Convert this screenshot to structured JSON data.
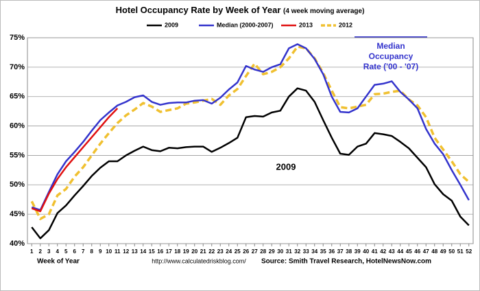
{
  "chart_data": {
    "type": "line",
    "title": "Hotel Occupancy Rate by  Week of Year",
    "subtitle": "(4 week moving average)",
    "x_label": "Week of Year",
    "footer": [
      "http://www.calculatedriskblog.com/",
      "Source: Smith Travel Research, HotelNewsNow.com"
    ],
    "annotations": [
      {
        "lines": [
          "Median",
          "Occupancy",
          "Rate ('00 - '07)"
        ],
        "color": "#3333cc"
      },
      {
        "lines": [
          "2009"
        ],
        "color": "#000000"
      }
    ],
    "x": [
      1,
      2,
      3,
      4,
      5,
      6,
      7,
      8,
      9,
      10,
      11,
      12,
      13,
      14,
      15,
      16,
      17,
      18,
      19,
      20,
      21,
      22,
      23,
      24,
      25,
      26,
      27,
      28,
      29,
      30,
      31,
      32,
      33,
      34,
      35,
      36,
      37,
      38,
      39,
      40,
      41,
      42,
      43,
      44,
      45,
      46,
      47,
      48,
      49,
      50,
      51,
      52
    ],
    "xlim": [
      0.5,
      52.5
    ],
    "xticks": [
      1,
      2,
      3,
      4,
      5,
      6,
      7,
      8,
      9,
      10,
      11,
      12,
      13,
      14,
      15,
      16,
      17,
      18,
      19,
      20,
      21,
      22,
      23,
      24,
      25,
      26,
      27,
      28,
      29,
      30,
      31,
      32,
      33,
      34,
      35,
      36,
      37,
      38,
      39,
      40,
      41,
      42,
      43,
      44,
      45,
      46,
      47,
      48,
      49,
      50,
      51,
      52
    ],
    "ylim": [
      40,
      75
    ],
    "yticks": [
      {
        "value": 40,
        "label": "40%"
      },
      {
        "value": 45,
        "label": "45%"
      },
      {
        "value": 50,
        "label": "50%"
      },
      {
        "value": 55,
        "label": "55%"
      },
      {
        "value": 60,
        "label": "60%"
      },
      {
        "value": 65,
        "label": "65%"
      },
      {
        "value": 70,
        "label": "70%"
      },
      {
        "value": 75,
        "label": "75%"
      }
    ],
    "grid": true,
    "legend": "top",
    "series": [
      {
        "name": "2009",
        "color": "#000000",
        "line_style": "solid",
        "values": [
          42.8,
          40.9,
          42.3,
          45.2,
          46.5,
          48.2,
          49.8,
          51.5,
          52.9,
          54.0,
          54.0,
          55.0,
          55.8,
          56.5,
          55.9,
          55.7,
          56.3,
          56.2,
          56.4,
          56.5,
          56.5,
          55.6,
          56.3,
          57.1,
          58.0,
          61.5,
          61.7,
          61.6,
          62.3,
          62.6,
          65.0,
          66.4,
          66.0,
          64.1,
          61.0,
          58.0,
          55.3,
          55.1,
          56.5,
          57.0,
          58.8,
          58.6,
          58.3,
          57.3,
          56.2,
          54.6,
          53.0,
          50.1,
          48.4,
          47.3,
          44.6,
          43.1
        ]
      },
      {
        "name": "Median (2000-2007)",
        "color": "#3333cc",
        "line_style": "solid",
        "values": [
          46.2,
          45.7,
          48.8,
          51.8,
          54.0,
          55.6,
          57.3,
          59.2,
          61.0,
          62.3,
          63.5,
          64.1,
          64.9,
          65.2,
          64.1,
          63.6,
          63.9,
          64.0,
          64.0,
          64.3,
          64.4,
          63.8,
          64.8,
          66.2,
          67.4,
          70.2,
          69.6,
          69.2,
          70.0,
          70.5,
          73.2,
          73.9,
          73.2,
          71.4,
          68.8,
          65.0,
          62.4,
          62.3,
          63.0,
          65.0,
          67.0,
          67.2,
          67.6,
          65.8,
          64.5,
          63.0,
          59.5,
          57.0,
          55.2,
          52.5,
          50.0,
          47.4
        ]
      },
      {
        "name": "2013",
        "color": "#e01010",
        "line_style": "solid",
        "values": [
          46.0,
          45.5,
          48.5,
          51.0,
          53.0,
          54.7,
          56.4,
          58.1,
          59.8,
          61.5,
          63.0,
          null,
          null,
          null,
          null,
          null,
          null,
          null,
          null,
          null,
          null,
          null,
          null,
          null,
          null,
          null,
          null,
          null,
          null,
          null,
          null,
          null,
          null,
          null,
          null,
          null,
          null,
          null,
          null,
          null,
          null,
          null,
          null,
          null,
          null,
          null,
          null,
          null,
          null,
          null,
          null,
          null
        ]
      },
      {
        "name": "2012",
        "color": "#f0c030",
        "line_style": "dashed",
        "values": [
          47.2,
          44.2,
          45.0,
          48.2,
          49.3,
          51.4,
          53.0,
          55.0,
          57.0,
          58.8,
          60.5,
          61.8,
          62.8,
          63.9,
          63.3,
          62.4,
          62.7,
          63.0,
          63.8,
          64.0,
          64.3,
          64.6,
          63.6,
          65.2,
          66.3,
          68.5,
          70.6,
          68.8,
          69.2,
          70.0,
          71.5,
          73.5,
          73.2,
          71.5,
          69.0,
          66.0,
          63.2,
          63.0,
          63.3,
          63.6,
          65.4,
          65.5,
          65.8,
          66.0,
          64.5,
          63.5,
          61.5,
          58.0,
          56.0,
          54.0,
          51.8,
          50.5
        ]
      }
    ]
  }
}
